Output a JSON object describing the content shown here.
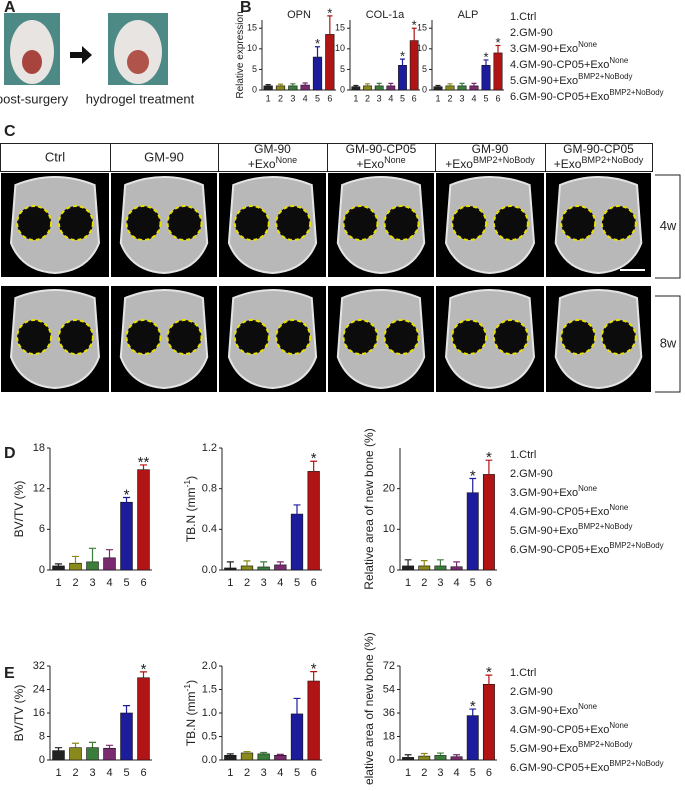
{
  "panel_labels": [
    "A",
    "B",
    "C",
    "D",
    "E"
  ],
  "panel_a": {
    "captions": [
      "post-surgery",
      "hydrogel treatment"
    ]
  },
  "panel_c": {
    "columns": [
      {
        "line1": "Ctrl"
      },
      {
        "line1": "GM-90"
      },
      {
        "line1": "GM-90",
        "line2": "+Exo",
        "sup": "None"
      },
      {
        "line1": "GM-90-CP05",
        "line2": "+Exo",
        "sup": "None"
      },
      {
        "line1": "GM-90",
        "line2": "+Exo",
        "sup": "BMP2+NoBody"
      },
      {
        "line1": "GM-90-CP05",
        "line2": "+Exo",
        "sup": "BMP2+NoBody"
      }
    ],
    "rows": [
      "4w",
      "8w"
    ]
  },
  "legends": [
    [
      {
        "text": "1.Ctrl"
      },
      {
        "text": "2.GM-90"
      },
      {
        "text": "3.GM-90+Exo",
        "sup": "None"
      },
      {
        "text": "4.GM-90-CP05+Exo",
        "sup": "None"
      },
      {
        "text": "5.GM-90+Exo",
        "sup": "BMP2+NoBody"
      },
      {
        "text": "6.GM-90-CP05+Exo",
        "sup": "BMP2+NoBody"
      }
    ],
    [
      {
        "text": "1.Ctrl"
      },
      {
        "text": "2.GM-90"
      },
      {
        "text": "3.GM-90+Exo",
        "sup": "None"
      },
      {
        "text": "4.GM-90-CP05+Exo",
        "sup": "None"
      },
      {
        "text": "5.GM-90+Exo",
        "sup": "BMP2+NoBody"
      },
      {
        "text": "6.GM-90-CP05+Exo",
        "sup": "BMP2+NoBody"
      }
    ],
    [
      {
        "text": "1.Ctrl"
      },
      {
        "text": "2.GM-90"
      },
      {
        "text": "3.GM-90+Exo",
        "sup": "None"
      },
      {
        "text": "4.GM-90-CP05+Exo",
        "sup": "None"
      },
      {
        "text": "5.GM-90+Exo",
        "sup": "BMP2+NoBody"
      },
      {
        "text": "6.GM-90-CP05+Exo",
        "sup": "BMP2+NoBody"
      }
    ]
  ],
  "chart_data": [
    {
      "type": "bar",
      "title": "OPN",
      "ylabel": {
        "text": "Relative expression"
      },
      "categories": [
        "1",
        "2",
        "3",
        "4",
        "5",
        "6"
      ],
      "values": [
        1,
        1,
        1,
        1.2,
        8,
        13.5
      ],
      "errors": [
        0.3,
        0.4,
        0.5,
        0.5,
        2.5,
        4.5
      ],
      "colors": [
        "#222222",
        "#8a8a1c",
        "#3b7d3b",
        "#7a2a6e",
        "#1c1c9c",
        "#b01414"
      ],
      "ylim": [
        0,
        17
      ],
      "yticks": [
        0,
        5,
        10,
        15
      ],
      "significance": [
        {
          "category": "5",
          "label": "*"
        },
        {
          "category": "6",
          "label": "*"
        }
      ]
    },
    {
      "type": "bar",
      "title": "COL-1a",
      "categories": [
        "1",
        "2",
        "3",
        "4",
        "5",
        "6"
      ],
      "values": [
        0.8,
        1,
        1,
        1,
        6,
        12
      ],
      "errors": [
        0.3,
        0.5,
        0.6,
        0.6,
        1.5,
        3
      ],
      "colors": [
        "#222222",
        "#8a8a1c",
        "#3b7d3b",
        "#7a2a6e",
        "#1c1c9c",
        "#b01414"
      ],
      "ylim": [
        0,
        17
      ],
      "yticks": [
        0,
        5,
        10,
        15
      ],
      "significance": [
        {
          "category": "5",
          "label": "*"
        },
        {
          "category": "6",
          "label": "*"
        }
      ]
    },
    {
      "type": "bar",
      "title": "ALP",
      "categories": [
        "1",
        "2",
        "3",
        "4",
        "5",
        "6"
      ],
      "values": [
        0.8,
        1,
        1,
        1,
        6,
        9
      ],
      "errors": [
        0.3,
        0.5,
        0.6,
        0.6,
        1.3,
        1.8
      ],
      "colors": [
        "#222222",
        "#8a8a1c",
        "#3b7d3b",
        "#7a2a6e",
        "#1c1c9c",
        "#b01414"
      ],
      "ylim": [
        0,
        17
      ],
      "yticks": [
        0,
        5,
        10,
        15
      ],
      "significance": [
        {
          "category": "5",
          "label": "*"
        },
        {
          "category": "6",
          "label": "*"
        }
      ]
    },
    {
      "type": "bar",
      "ylabel": {
        "text": "BV/TV (%)"
      },
      "categories": [
        "1",
        "2",
        "3",
        "4",
        "5",
        "6"
      ],
      "values": [
        0.6,
        1.0,
        1.2,
        1.8,
        10,
        14.8
      ],
      "errors": [
        0.3,
        1,
        2,
        1.2,
        0.7,
        0.7
      ],
      "colors": [
        "#222222",
        "#8a8a1c",
        "#3b7d3b",
        "#7a2a6e",
        "#1c1c9c",
        "#b01414"
      ],
      "ylim": [
        0,
        18
      ],
      "yticks": [
        0,
        6,
        12,
        18
      ],
      "significance": [
        {
          "category": "5",
          "label": "*"
        },
        {
          "category": "6",
          "label": "**"
        }
      ]
    },
    {
      "type": "bar",
      "ylabel": {
        "text": "TB.N (mm",
        "sup": "-1",
        "tail": ")"
      },
      "categories": [
        "1",
        "2",
        "3",
        "4",
        "5",
        "6"
      ],
      "values": [
        0.02,
        0.04,
        0.03,
        0.05,
        0.55,
        0.97
      ],
      "errors": [
        0.06,
        0.05,
        0.05,
        0.03,
        0.09,
        0.1
      ],
      "colors": [
        "#222222",
        "#8a8a1c",
        "#3b7d3b",
        "#7a2a6e",
        "#1c1c9c",
        "#b01414"
      ],
      "ylim": [
        0,
        1.2
      ],
      "yticks": [
        {
          "value": 0,
          "label": "0.0"
        },
        0.4,
        0.8,
        {
          "value": 1.2,
          "label": "1.2"
        }
      ],
      "significance": [
        {
          "category": "6",
          "label": "*"
        }
      ]
    },
    {
      "type": "bar",
      "ylabel": {
        "text": "Relative area of new bone (%)"
      },
      "categories": [
        "1",
        "2",
        "3",
        "4",
        "5",
        "6"
      ],
      "values": [
        1,
        1,
        1,
        0.8,
        19,
        23.5
      ],
      "errors": [
        1.5,
        1.3,
        1.5,
        1.2,
        3.5,
        3.5
      ],
      "colors": [
        "#222222",
        "#8a8a1c",
        "#3b7d3b",
        "#7a2a6e",
        "#1c1c9c",
        "#b01414"
      ],
      "ylim": [
        0,
        30
      ],
      "yticks": [
        0,
        10,
        20
      ],
      "significance": [
        {
          "category": "5",
          "label": "*"
        },
        {
          "category": "6",
          "label": "*"
        }
      ]
    },
    {
      "type": "bar",
      "ylabel": {
        "text": "BV/TV (%)"
      },
      "categories": [
        "1",
        "2",
        "3",
        "4",
        "5",
        "6"
      ],
      "values": [
        3.2,
        4.2,
        4.2,
        4,
        16,
        28
      ],
      "errors": [
        1,
        1.5,
        1.8,
        1,
        2.5,
        2
      ],
      "colors": [
        "#222222",
        "#8a8a1c",
        "#3b7d3b",
        "#7a2a6e",
        "#1c1c9c",
        "#b01414"
      ],
      "ylim": [
        0,
        32
      ],
      "yticks": [
        0,
        8,
        16,
        24,
        32
      ],
      "significance": [
        {
          "category": "6",
          "label": "*"
        }
      ]
    },
    {
      "type": "bar",
      "ylabel": {
        "text": "TB.N (mm",
        "sup": "-1",
        "tail": ")"
      },
      "categories": [
        "1",
        "2",
        "3",
        "4",
        "5",
        "6"
      ],
      "values": [
        0.1,
        0.15,
        0.13,
        0.1,
        0.98,
        1.68
      ],
      "errors": [
        0.03,
        0.03,
        0.03,
        0.02,
        0.33,
        0.2
      ],
      "colors": [
        "#222222",
        "#8a8a1c",
        "#3b7d3b",
        "#7a2a6e",
        "#1c1c9c",
        "#b01414"
      ],
      "ylim": [
        0,
        2
      ],
      "yticks": [
        {
          "value": 0,
          "label": "0.0"
        },
        0.5,
        {
          "value": 1,
          "label": "1.0"
        },
        1.5,
        {
          "value": 2,
          "label": "2.0"
        }
      ],
      "significance": [
        {
          "category": "6",
          "label": "*"
        }
      ]
    },
    {
      "type": "bar",
      "ylabel": {
        "text": "Relative area of new bone (%)"
      },
      "categories": [
        "1",
        "2",
        "3",
        "4",
        "5",
        "6"
      ],
      "values": [
        2,
        3,
        3.5,
        2.5,
        34,
        58
      ],
      "errors": [
        2,
        2,
        1.8,
        1.5,
        5,
        7
      ],
      "colors": [
        "#222222",
        "#8a8a1c",
        "#3b7d3b",
        "#7a2a6e",
        "#1c1c9c",
        "#b01414"
      ],
      "ylim": [
        0,
        72
      ],
      "yticks": [
        0,
        18,
        36,
        54,
        72
      ],
      "significance": [
        {
          "category": "5",
          "label": "*"
        },
        {
          "category": "6",
          "label": "*"
        }
      ]
    }
  ]
}
